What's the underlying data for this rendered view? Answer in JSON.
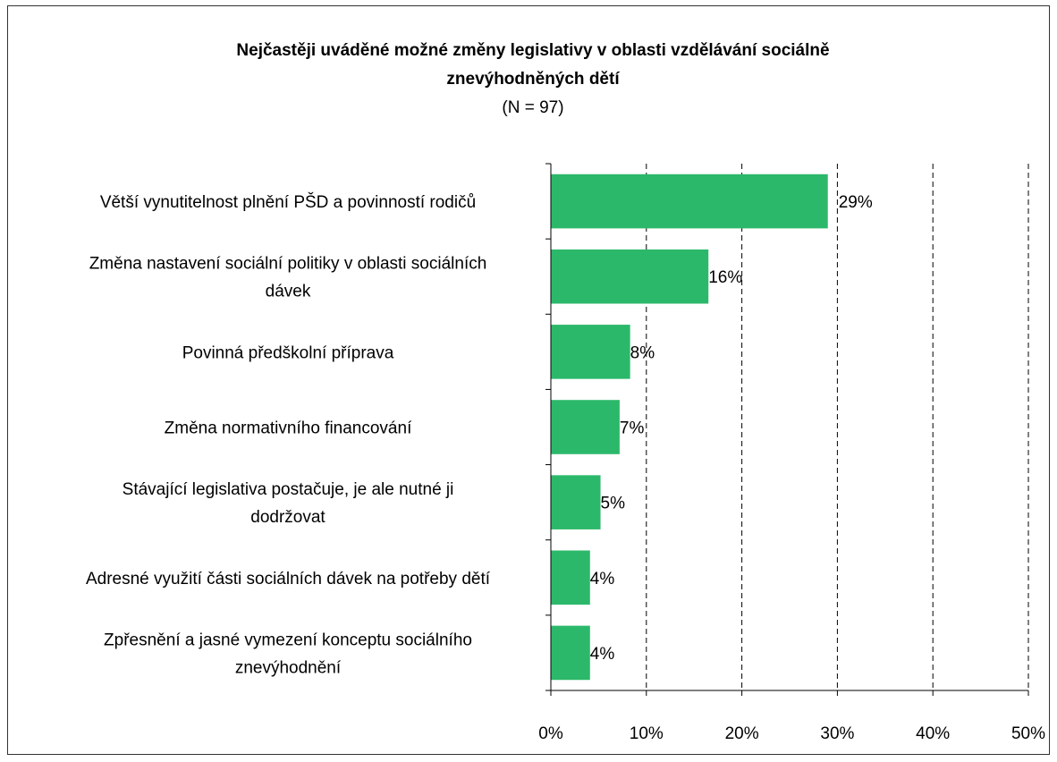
{
  "chart_data": {
    "type": "bar",
    "orientation": "horizontal",
    "title_lines": [
      "Nejčastěji uváděné možné změny legislativy v oblasti vzdělávání sociálně",
      "znevýhodněných dětí"
    ],
    "subtitle": "(N = 97)",
    "categories": [
      [
        "Větší vynutitelnost plnění PŠD a povinností rodičů"
      ],
      [
        "Změna nastavení sociální politiky v oblasti sociálních",
        "dávek"
      ],
      [
        "Povinná předškolní příprava"
      ],
      [
        "Změna normativního financování"
      ],
      [
        "Stávající legislativa postačuje, je ale nutné ji",
        "dodržovat"
      ],
      [
        "Adresné využití části sociálních dávek na potřeby dětí"
      ],
      [
        "Zpřesnění a jasné vymezení konceptu sociálního",
        "znevýhodnění"
      ]
    ],
    "values": [
      29,
      16.5,
      8.3,
      7.2,
      5.2,
      4.1,
      4.1
    ],
    "data_labels": [
      "29%",
      "16%",
      "8%",
      "7%",
      "5%",
      "4%",
      "4%"
    ],
    "xlim": [
      0,
      50
    ],
    "ticks": [
      "0%",
      "10%",
      "20%",
      "30%",
      "40%",
      "50%"
    ],
    "tick_values": [
      0,
      10,
      20,
      30,
      40,
      50
    ],
    "grid": "vertical dashed",
    "bar_color": "#2cb86a"
  }
}
